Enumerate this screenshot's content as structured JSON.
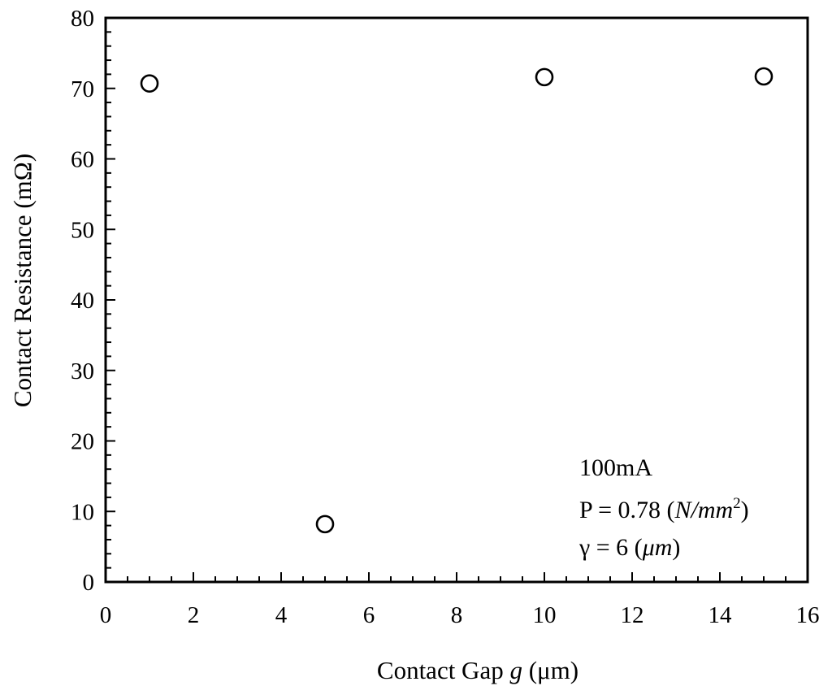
{
  "chart_data": {
    "type": "scatter",
    "title": "",
    "xlabel_parts": [
      "Contact Gap ",
      "g",
      " (μm)"
    ],
    "ylabel": "Contact Resistance (mΩ)",
    "xlim": [
      0,
      16
    ],
    "ylim": [
      0,
      80
    ],
    "x_ticks": [
      "0",
      "2",
      "4",
      "6",
      "8",
      "10",
      "12",
      "14",
      "16"
    ],
    "y_ticks": [
      "0",
      "10",
      "20",
      "30",
      "40",
      "50",
      "60",
      "70",
      "80"
    ],
    "grid": false,
    "marker": "open-circle",
    "series": [
      {
        "points": [
          {
            "x": 1,
            "y": 70.7
          },
          {
            "x": 5,
            "y": 8.2
          },
          {
            "x": 10,
            "y": 71.6
          },
          {
            "x": 15,
            "y": 71.7
          }
        ]
      }
    ],
    "annotations": {
      "current": "100mA",
      "pressure": {
        "prefix": "P = 0.78 (",
        "unit_italic": "N/mm",
        "sup": "2",
        "suffix": ")"
      },
      "gamma": {
        "prefix": "γ = 6 (",
        "unit_italic": "μm",
        "suffix": ")"
      }
    }
  }
}
